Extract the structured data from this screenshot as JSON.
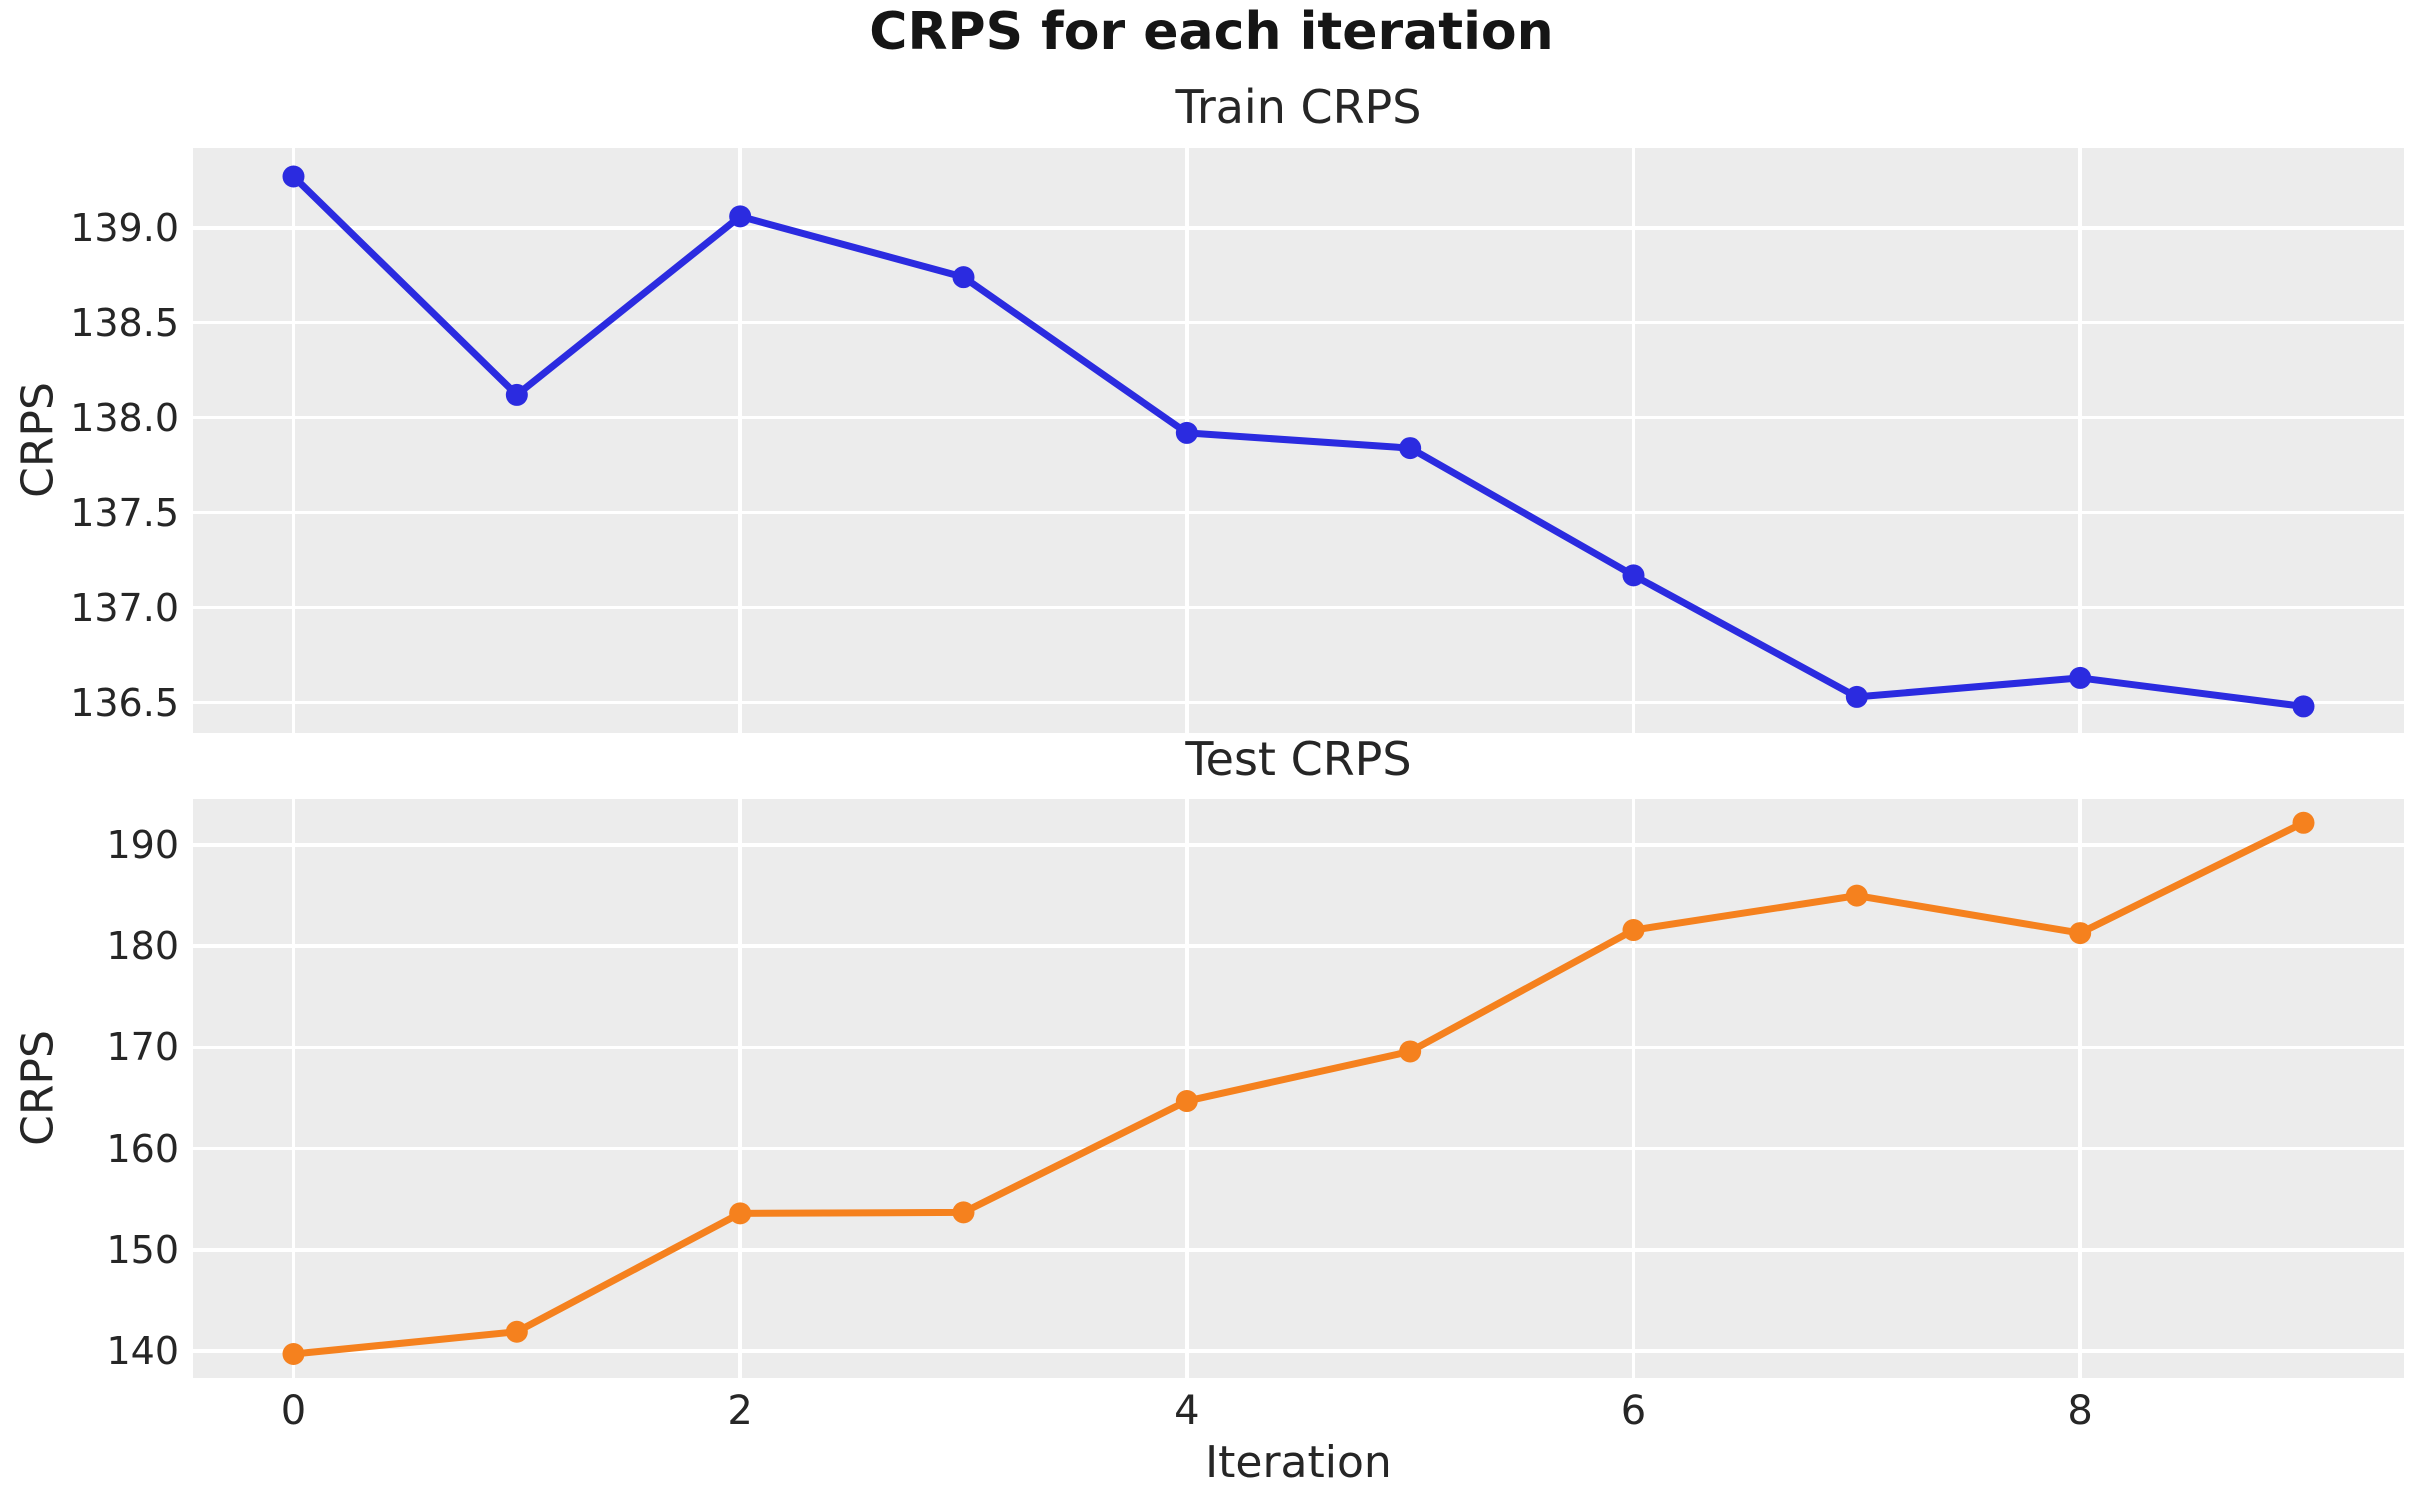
{
  "figure": {
    "suptitle": "CRPS for each iteration",
    "xlabel": "Iteration",
    "colors": {
      "axes_background": "#ececec",
      "gridline": "#ffffff",
      "text": "#262626",
      "train_line": "#2b2be0",
      "test_line": "#f5811e"
    }
  },
  "chart_data": [
    {
      "type": "line",
      "title": "Train CRPS",
      "ylabel": "CRPS",
      "series_name": "Train CRPS",
      "series_color": "#2b2be0",
      "marker": "circle",
      "grid": true,
      "legend": "none",
      "x": [
        0,
        1,
        2,
        3,
        4,
        5,
        6,
        7,
        8,
        9
      ],
      "values": [
        139.27,
        138.12,
        139.06,
        138.74,
        137.92,
        137.84,
        137.17,
        136.53,
        136.63,
        136.48
      ],
      "xlim": [
        -0.45,
        9.45
      ],
      "ylim": [
        136.34,
        139.42
      ],
      "yticks": [
        139.0,
        138.5,
        138.0,
        137.5,
        137.0,
        136.5
      ],
      "ytick_labels": [
        "139.0",
        "138.5",
        "138.0",
        "137.5",
        "137.0",
        "136.5"
      ],
      "xticks": [
        0,
        2,
        4,
        6,
        8
      ],
      "xtick_labels": [
        "0",
        "2",
        "4",
        "6",
        "8"
      ],
      "show_xtick_labels": false
    },
    {
      "type": "line",
      "title": "Test CRPS",
      "ylabel": "CRPS",
      "series_name": "Test CRPS",
      "series_color": "#f5811e",
      "marker": "circle",
      "grid": true,
      "legend": "none",
      "x": [
        0,
        1,
        2,
        3,
        4,
        5,
        6,
        7,
        8,
        9
      ],
      "values": [
        139.7,
        141.9,
        153.6,
        153.7,
        164.7,
        169.6,
        181.6,
        185.0,
        181.3,
        192.2
      ],
      "xlim": [
        -0.45,
        9.45
      ],
      "ylim": [
        137.33,
        194.55
      ],
      "yticks": [
        190,
        180,
        170,
        160,
        150,
        140
      ],
      "ytick_labels": [
        "190",
        "180",
        "170",
        "160",
        "150",
        "140"
      ],
      "xticks": [
        0,
        2,
        4,
        6,
        8
      ],
      "xtick_labels": [
        "0",
        "2",
        "4",
        "6",
        "8"
      ],
      "show_xtick_labels": true
    }
  ]
}
